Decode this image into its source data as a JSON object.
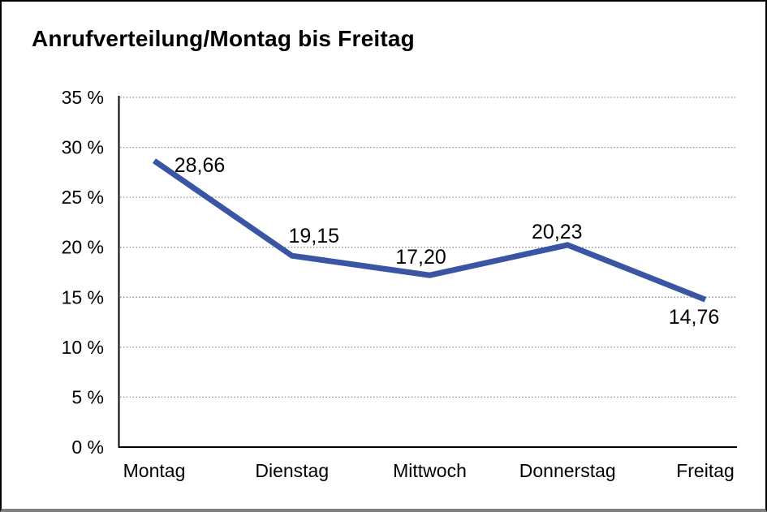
{
  "chart_data": {
    "type": "line",
    "title": "Anrufverteilung/Montag bis Freitag",
    "categories": [
      "Montag",
      "Dienstag",
      "Mittwoch",
      "Donnerstag",
      "Freitag"
    ],
    "values": [
      28.66,
      19.15,
      17.2,
      20.23,
      14.76
    ],
    "value_labels": [
      "28,66",
      "19,15",
      "17,20",
      "20,23",
      "14,76"
    ],
    "y_ticks": [
      "35 %",
      "30 %",
      "25 %",
      "20 %",
      "15 %",
      "10 %",
      "5 %",
      "0 %"
    ],
    "y_tick_values": [
      35,
      30,
      25,
      20,
      15,
      10,
      5,
      0
    ],
    "ylim": [
      0,
      35
    ],
    "xlabel": "",
    "ylabel": "",
    "grid": "horizontal-dotted",
    "legend": "none",
    "line_color": "#3A55A3",
    "grid_color": "#8f8f8f",
    "axis_color": "#000000",
    "window_border_color": "#000000",
    "window_bottom_bar_color": "#7f7f7f"
  }
}
